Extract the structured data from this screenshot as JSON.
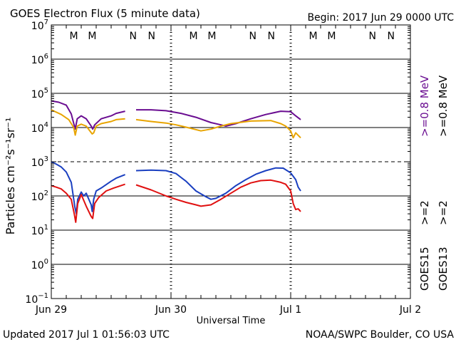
{
  "header": {
    "title": "GOES Electron Flux (5 minute data)",
    "begin": "Begin: 2017 Jun 29 0000 UTC"
  },
  "footer": {
    "updated": "Updated 2017 Jul  1 01:56:03 UTC",
    "source": "NOAA/SWPC Boulder, CO USA"
  },
  "colors": {
    "red": "#e01010",
    "blue": "#1a3fc0",
    "purple": "#6a0d91",
    "orange": "#e8a400",
    "axis": "#000000"
  },
  "chart_data": {
    "type": "line",
    "title": "GOES Electron Flux (5 minute data)",
    "xlabel": "Universal Time",
    "ylabel": "Particles cm⁻²s⁻¹sr⁻¹",
    "xlim": [
      0,
      72
    ],
    "ylim_log10": [
      -1,
      7
    ],
    "y_tick_exponents": [
      -1,
      0,
      1,
      2,
      3,
      4,
      5,
      6,
      7
    ],
    "threshold_line": {
      "value": 1000,
      "style": "dashed"
    },
    "x_ticks": [
      {
        "hour": 0,
        "label": "Jun 29"
      },
      {
        "hour": 24,
        "label": "Jun 30"
      },
      {
        "hour": 48,
        "label": "Jul 1"
      },
      {
        "hour": 72,
        "label": "Jul 2"
      }
    ],
    "day_markers": [
      24,
      48
    ],
    "orbit_markers": [
      {
        "hour": 4.5,
        "label": "M",
        "color": "red"
      },
      {
        "hour": 8.2,
        "label": "M",
        "color": "blue"
      },
      {
        "hour": 16.4,
        "label": "N",
        "color": "red"
      },
      {
        "hour": 20.1,
        "label": "N",
        "color": "blue"
      },
      {
        "hour": 28.5,
        "label": "M",
        "color": "red"
      },
      {
        "hour": 32.2,
        "label": "M",
        "color": "blue"
      },
      {
        "hour": 40.4,
        "label": "N",
        "color": "red"
      },
      {
        "hour": 44.1,
        "label": "N",
        "color": "blue"
      },
      {
        "hour": 52.5,
        "label": "M",
        "color": "red"
      },
      {
        "hour": 56.2,
        "label": "M",
        "color": "blue"
      },
      {
        "hour": 64.4,
        "label": "N",
        "color": "red"
      },
      {
        "hour": 68.1,
        "label": "N",
        "color": "blue"
      }
    ],
    "legend": [
      {
        "label": ">=0.8  MeV",
        "color": "purple"
      },
      {
        "label": ">=2",
        "color": "blue"
      },
      {
        "label": "GOES15",
        "color": "axis"
      },
      {
        "label": ">=0.8  MeV",
        "color": "orange"
      },
      {
        "label": ">=2",
        "color": "red"
      },
      {
        "label": "GOES13",
        "color": "axis"
      }
    ],
    "series": [
      {
        "name": "GOES15 >=0.8 MeV",
        "color": "purple",
        "segments": [
          [
            [
              0,
              60000
            ],
            [
              1.5,
              55000
            ],
            [
              3,
              45000
            ],
            [
              4,
              25000
            ],
            [
              4.8,
              9000
            ],
            [
              5.2,
              18000
            ],
            [
              6,
              22000
            ],
            [
              7,
              18000
            ],
            [
              8,
              11000
            ],
            [
              8.3,
              9000
            ],
            [
              8.7,
              12000
            ],
            [
              10,
              18000
            ],
            [
              12,
              22000
            ],
            [
              13,
              26000
            ],
            [
              14.8,
              30000
            ]
          ],
          [
            [
              17,
              33000
            ],
            [
              20,
              33000
            ],
            [
              23,
              31000
            ],
            [
              26,
              26000
            ],
            [
              29,
              20000
            ],
            [
              32,
              14000
            ],
            [
              34,
              12000
            ],
            [
              35,
              11000
            ],
            [
              37,
              13000
            ],
            [
              40,
              18000
            ],
            [
              43,
              24000
            ],
            [
              46,
              30000
            ],
            [
              48,
              29000
            ],
            [
              49,
              22000
            ],
            [
              50,
              17000
            ]
          ]
        ]
      },
      {
        "name": "GOES13 >=0.8 MeV",
        "color": "orange",
        "segments": [
          [
            [
              0,
              33000
            ],
            [
              2,
              24000
            ],
            [
              3.5,
              17000
            ],
            [
              4.5,
              10000
            ],
            [
              4.8,
              6000
            ],
            [
              5.2,
              11000
            ],
            [
              6,
              12500
            ],
            [
              7,
              11000
            ],
            [
              8.2,
              6500
            ],
            [
              8.5,
              7000
            ],
            [
              9,
              11000
            ],
            [
              10,
              13000
            ],
            [
              12,
              15000
            ],
            [
              13,
              17000
            ],
            [
              14.8,
              18000
            ]
          ],
          [
            [
              17,
              17000
            ],
            [
              20,
              15000
            ],
            [
              23,
              13500
            ],
            [
              25,
              12000
            ],
            [
              28,
              9500
            ],
            [
              30,
              8000
            ],
            [
              32,
              9000
            ],
            [
              34,
              11000
            ],
            [
              36,
              13000
            ],
            [
              40,
              15500
            ],
            [
              44,
              16000
            ],
            [
              46,
              13000
            ],
            [
              47,
              11000
            ],
            [
              48,
              8000
            ],
            [
              48.5,
              5000
            ],
            [
              49,
              7000
            ],
            [
              50,
              5000
            ]
          ]
        ]
      },
      {
        "name": "GOES15 >=2 MeV",
        "color": "blue",
        "segments": [
          [
            [
              0,
              1000
            ],
            [
              1,
              850
            ],
            [
              2,
              700
            ],
            [
              3,
              500
            ],
            [
              4,
              250
            ],
            [
              4.7,
              50
            ],
            [
              5,
              30
            ],
            [
              5.3,
              80
            ],
            [
              6,
              130
            ],
            [
              6.5,
              100
            ],
            [
              7,
              120
            ],
            [
              8,
              55
            ],
            [
              8.2,
              35
            ],
            [
              8.5,
              80
            ],
            [
              9,
              140
            ],
            [
              10,
              170
            ],
            [
              12,
              270
            ],
            [
              13,
              330
            ],
            [
              14.8,
              420
            ]
          ],
          [
            [
              17,
              550
            ],
            [
              20,
              570
            ],
            [
              23,
              550
            ],
            [
              25,
              450
            ],
            [
              27,
              270
            ],
            [
              29,
              140
            ],
            [
              31,
              95
            ],
            [
              32,
              80
            ],
            [
              33,
              85
            ],
            [
              35,
              120
            ],
            [
              37,
              200
            ],
            [
              39,
              300
            ],
            [
              41,
              430
            ],
            [
              43,
              550
            ],
            [
              45,
              660
            ],
            [
              46.5,
              650
            ],
            [
              48,
              470
            ],
            [
              49,
              300
            ],
            [
              49.5,
              180
            ],
            [
              50,
              140
            ]
          ]
        ]
      },
      {
        "name": "GOES13 >=2 MeV",
        "color": "red",
        "segments": [
          [
            [
              0,
              200
            ],
            [
              1,
              180
            ],
            [
              2,
              160
            ],
            [
              3,
              120
            ],
            [
              4,
              80
            ],
            [
              4.6,
              30
            ],
            [
              4.9,
              17
            ],
            [
              5.3,
              60
            ],
            [
              6,
              110
            ],
            [
              7,
              50
            ],
            [
              8,
              25
            ],
            [
              8.3,
              22
            ],
            [
              8.7,
              60
            ],
            [
              9.5,
              90
            ],
            [
              11,
              140
            ],
            [
              12.5,
              170
            ],
            [
              14.8,
              220
            ]
          ],
          [
            [
              17,
              210
            ],
            [
              20,
              150
            ],
            [
              23,
              100
            ],
            [
              25,
              80
            ],
            [
              27,
              65
            ],
            [
              29,
              55
            ],
            [
              30,
              50
            ],
            [
              32,
              55
            ],
            [
              34,
              80
            ],
            [
              36,
              120
            ],
            [
              38,
              180
            ],
            [
              40,
              240
            ],
            [
              42,
              280
            ],
            [
              44,
              290
            ],
            [
              46,
              250
            ],
            [
              47,
              220
            ],
            [
              48,
              140
            ],
            [
              48.5,
              60
            ],
            [
              49,
              40
            ],
            [
              49.5,
              42
            ],
            [
              50,
              35
            ]
          ]
        ]
      }
    ]
  }
}
